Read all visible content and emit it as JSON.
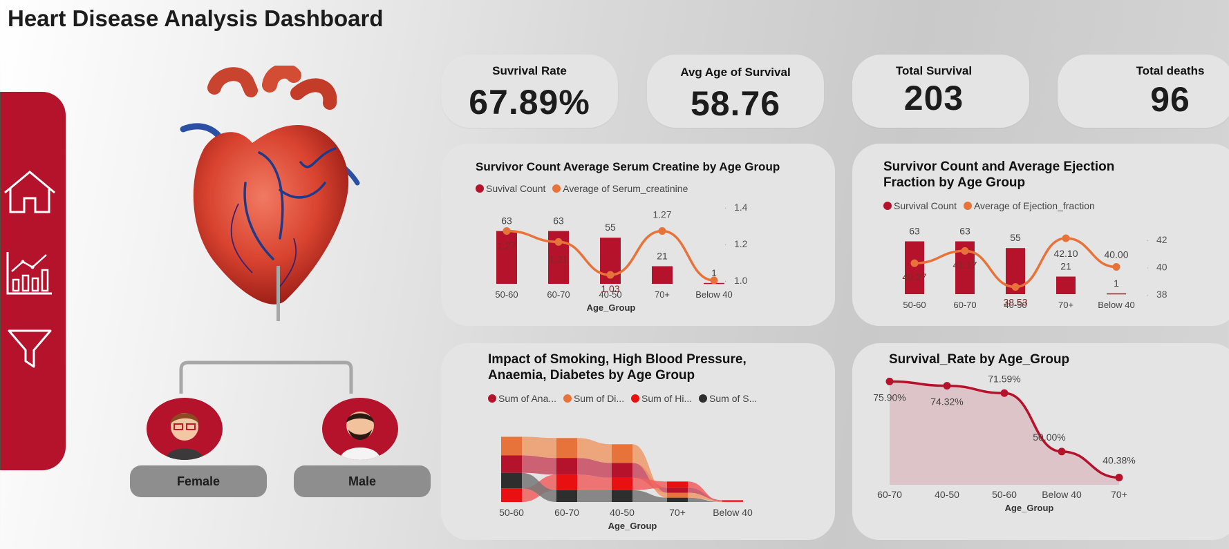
{
  "title": "Heart Disease Analysis Dashboard",
  "colors": {
    "crimson": "#b5122b",
    "orange": "#e8733a",
    "red": "#e81010",
    "dark": "#2e2e2e"
  },
  "sidebar": {
    "items": [
      {
        "icon": "home-icon"
      },
      {
        "icon": "chart-icon"
      },
      {
        "icon": "filter-icon"
      }
    ]
  },
  "gender": {
    "female": "Female",
    "male": "Male"
  },
  "kpis": [
    {
      "label": "Suvrival Rate",
      "value": "67.89%"
    },
    {
      "label": "Avg Age of Survival",
      "value": "58.76"
    },
    {
      "label": "Total Survival",
      "value": "203"
    },
    {
      "label": "Total deaths",
      "value": "96"
    }
  ],
  "chart_data": [
    {
      "type": "bar+line",
      "title": "Survivor Count Average Serum Creatine by Age Group",
      "xlabel": "Age_Group",
      "categories": [
        "50-60",
        "60-70",
        "40-50",
        "70+",
        "Below 40"
      ],
      "series": [
        {
          "name": "Suvival Count",
          "values": [
            63,
            63,
            55,
            21,
            1
          ],
          "labels": [
            "63",
            "63",
            "55",
            "21",
            "1"
          ]
        },
        {
          "name": "Average of Serum_creatinine",
          "values": [
            1.27,
            1.21,
            1.03,
            1.27,
            1.0
          ],
          "labels": [
            "1.27",
            "1.21",
            "1.03",
            "1.27",
            ""
          ]
        }
      ],
      "y2_ticks": [
        "1.4",
        "1.2",
        "1.0"
      ],
      "y2lim": [
        1.0,
        1.4
      ]
    },
    {
      "type": "bar+line",
      "title": "Survivor Count and Average Ejection Fraction by Age Group",
      "title_lines": [
        "Survivor Count and Average Ejection",
        "Fraction by Age Group"
      ],
      "xlabel": "",
      "categories": [
        "50-60",
        "60-70",
        "40-50",
        "70+",
        "Below 40"
      ],
      "series": [
        {
          "name": "Survival Count",
          "values": [
            63,
            63,
            55,
            21,
            1
          ],
          "labels": [
            "63",
            "63",
            "55",
            "21",
            "1"
          ]
        },
        {
          "name": "Average of Ejection_fraction",
          "values": [
            40.27,
            41.17,
            38.53,
            42.1,
            40.0
          ],
          "labels": [
            "40.27",
            "41.17",
            "38.53",
            "42.10",
            "40.00"
          ]
        }
      ],
      "y2_ticks": [
        "42",
        "40",
        "38"
      ],
      "y2lim": [
        38,
        42
      ]
    },
    {
      "type": "ribbon",
      "title": "Impact of Smoking, High Blood Pressure, Anaemia, Diabetes by Age Group",
      "title_lines": [
        "Impact of Smoking, High Blood Pressure,",
        "Anaemia, Diabetes by Age Group"
      ],
      "xlabel": "Age_Group",
      "categories": [
        "50-60",
        "60-70",
        "40-50",
        "70+",
        "Below 40"
      ],
      "legend": [
        "Sum of Ana...",
        "Sum of Di...",
        "Sum of Hi...",
        "Sum of S..."
      ],
      "series": [
        {
          "name": "Sum of Ana...",
          "values": [
            28,
            27,
            24,
            8,
            1
          ]
        },
        {
          "name": "Sum of Di...",
          "values": [
            30,
            32,
            30,
            8,
            1
          ]
        },
        {
          "name": "Sum of Hi...",
          "values": [
            22,
            25,
            20,
            10,
            1
          ]
        },
        {
          "name": "Sum of S...",
          "values": [
            25,
            19,
            19,
            7,
            0
          ]
        }
      ]
    },
    {
      "type": "area",
      "title": "Survival_Rate by Age_Group",
      "xlabel": "Age_Group",
      "categories": [
        "60-70",
        "40-50",
        "50-60",
        "Below 40",
        "70+"
      ],
      "values": [
        75.9,
        74.32,
        71.59,
        50.0,
        40.38
      ],
      "labels": [
        "75.90%",
        "74.32%",
        "71.59%",
        "50.00%",
        "40.38%"
      ]
    }
  ]
}
